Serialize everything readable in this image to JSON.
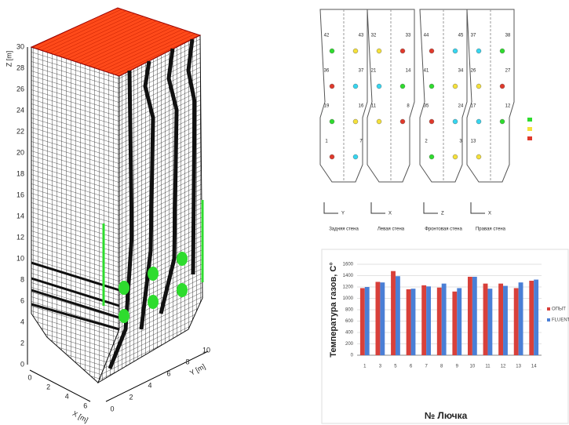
{
  "mesh": {
    "z_label": "Z [m]",
    "x_label": "X [m]",
    "y_label": "Y [m]",
    "zticks": [
      0,
      2,
      4,
      6,
      8,
      10,
      12,
      14,
      16,
      18,
      20,
      22,
      24,
      26,
      28,
      30
    ],
    "xticks": [
      0,
      2,
      4,
      6
    ],
    "yticks": [
      0,
      2,
      4,
      6,
      8,
      10
    ]
  },
  "diagram": {
    "panels": [
      {
        "caption": "Задняя стена",
        "labels": [
          "42",
          "43",
          "36",
          "37",
          "19",
          "16",
          "1",
          "7"
        ]
      },
      {
        "caption": "Левая стена",
        "labels": [
          "32",
          "33",
          "21",
          "14",
          "11",
          "8"
        ]
      },
      {
        "caption": "Фронтовая стена",
        "labels": [
          "44",
          "45",
          "41",
          "34",
          "35",
          "24",
          "2",
          "3"
        ]
      },
      {
        "caption": "Правая стена",
        "labels": [
          "37",
          "38",
          "26",
          "27",
          "17",
          "12",
          "13"
        ]
      }
    ],
    "axes": [
      "Y",
      "X",
      "Z",
      "X"
    ]
  },
  "chart_data": {
    "type": "bar",
    "y_label": "Температура газов, C°",
    "x_label": "№ Лючка",
    "categories": [
      "1",
      "3",
      "5",
      "6",
      "7",
      "8",
      "9",
      "10",
      "11",
      "12",
      "13",
      "14"
    ],
    "series": [
      {
        "name": "ОПЫТ",
        "color": "#d8403a",
        "values": [
          1180,
          1290,
          1480,
          1160,
          1230,
          1190,
          1120,
          1380,
          1260,
          1260,
          1180,
          1310
        ]
      },
      {
        "name": "FLUENT",
        "color": "#4a7fd6",
        "values": [
          1200,
          1280,
          1390,
          1170,
          1210,
          1260,
          1180,
          1380,
          1170,
          1220,
          1280,
          1330
        ]
      }
    ],
    "ylim": [
      0,
      1600
    ],
    "yticks": [
      0,
      200,
      400,
      600,
      800,
      1000,
      1200,
      1400,
      1600
    ],
    "grid": true,
    "legend": "right"
  }
}
